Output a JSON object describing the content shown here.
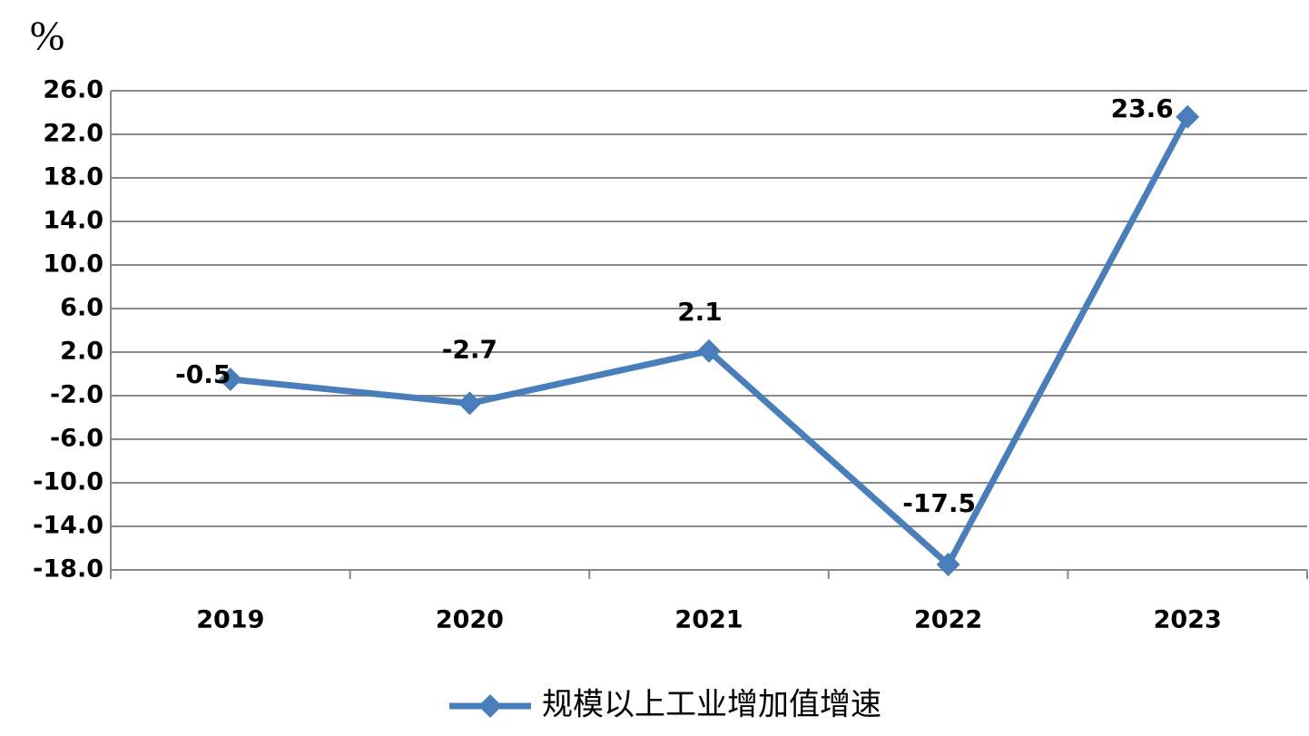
{
  "chart_data": {
    "type": "line",
    "y_unit": "%",
    "categories": [
      "2019",
      "2020",
      "2021",
      "2022",
      "2023"
    ],
    "series": [
      {
        "name": "规模以上工业增加值增速",
        "color": "#4a7ebb",
        "values": [
          -0.5,
          -2.7,
          2.1,
          -17.5,
          23.6
        ]
      }
    ],
    "ylim": [
      -18,
      26
    ],
    "yticks": [
      {
        "value": -18,
        "label": "-18.0"
      },
      {
        "value": -14,
        "label": "-14.0"
      },
      {
        "value": -10,
        "label": "-10.0"
      },
      {
        "value": -6,
        "label": "-6.0"
      },
      {
        "value": -2,
        "label": "-2.0"
      },
      {
        "value": 2,
        "label": "2.0"
      },
      {
        "value": 6,
        "label": "6.0"
      },
      {
        "value": 10,
        "label": "10.0"
      },
      {
        "value": 14,
        "label": "14.0"
      },
      {
        "value": 18,
        "label": "18.0"
      },
      {
        "value": 22,
        "label": "22.0"
      },
      {
        "value": 26,
        "label": "26.0"
      }
    ],
    "grid": true,
    "legend": "bottom"
  }
}
